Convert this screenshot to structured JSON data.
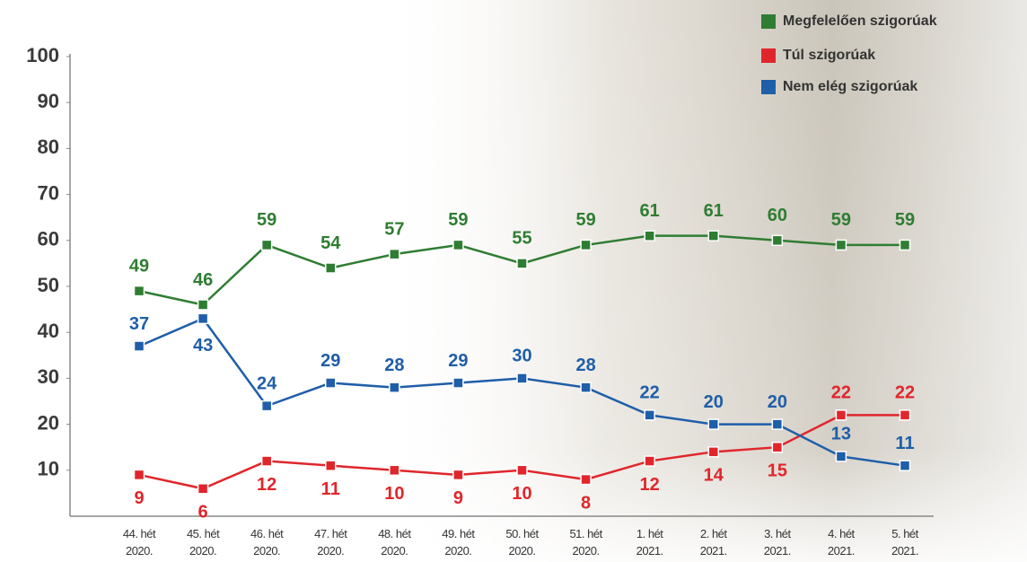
{
  "chart_data": {
    "type": "line",
    "categories": [
      "44. hét\n2020.",
      "45. hét\n2020.",
      "46. hét\n2020.",
      "47. hét\n2020.",
      "48. hét\n2020.",
      "49. hét\n2020.",
      "50. hét\n2020.",
      "51. hét\n2020.",
      "1. hét\n2021.",
      "2. hét\n2021.",
      "3. hét\n2021.",
      "4. hét\n2021.",
      "5. hét\n2021."
    ],
    "series": [
      {
        "name": "Megfelelően szigorúak",
        "color": "#2f7d32",
        "values": [
          49,
          46,
          59,
          54,
          57,
          59,
          55,
          59,
          61,
          61,
          60,
          59,
          59
        ]
      },
      {
        "name": "Túl szigorúak",
        "color": "#e0262b",
        "values": [
          9,
          6,
          12,
          11,
          10,
          9,
          10,
          8,
          12,
          14,
          15,
          22,
          22
        ]
      },
      {
        "name": "Nem elég szigorúak",
        "color": "#1f5ea8",
        "values": [
          37,
          43,
          24,
          29,
          28,
          29,
          30,
          28,
          22,
          20,
          20,
          13,
          11
        ]
      }
    ],
    "ylim": [
      0,
      100
    ],
    "yticks": [
      10,
      20,
      30,
      40,
      50,
      60,
      70,
      80,
      90,
      100
    ],
    "grid": false,
    "legend": "top-right"
  }
}
